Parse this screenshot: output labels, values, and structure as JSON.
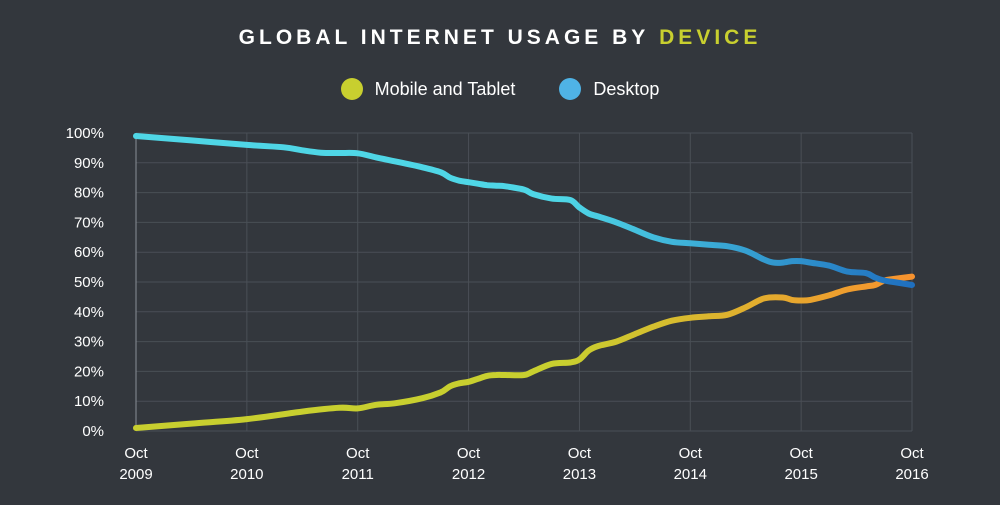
{
  "title_prefix": "GLOBAL INTERNET USAGE BY",
  "title_accent": "DEVICE",
  "legend": [
    {
      "name": "Mobile and Tablet",
      "color": "#c8cf2f"
    },
    {
      "name": "Desktop",
      "color": "#4fb3e6"
    }
  ],
  "chart_data": {
    "type": "line",
    "ylim": [
      0,
      100
    ],
    "xlim": [
      0,
      84
    ],
    "grid": true,
    "legend_placement": "top-center",
    "yticks": [
      {
        "value": 0,
        "label": "0%"
      },
      {
        "value": 10,
        "label": "10%"
      },
      {
        "value": 20,
        "label": "20%"
      },
      {
        "value": 30,
        "label": "30%"
      },
      {
        "value": 40,
        "label": "40%"
      },
      {
        "value": 50,
        "label": "50%"
      },
      {
        "value": 60,
        "label": "60%"
      },
      {
        "value": 70,
        "label": "70%"
      },
      {
        "value": 80,
        "label": "80%"
      },
      {
        "value": 90,
        "label": "90%"
      },
      {
        "value": 100,
        "label": "100%"
      }
    ],
    "xticks": [
      {
        "value": 0,
        "label": [
          "Oct",
          "2009"
        ]
      },
      {
        "value": 12,
        "label": [
          "Oct",
          "2010"
        ]
      },
      {
        "value": 24,
        "label": [
          "Oct",
          "2011"
        ]
      },
      {
        "value": 36,
        "label": [
          "Oct",
          "2012"
        ]
      },
      {
        "value": 48,
        "label": [
          "Oct",
          "2013"
        ]
      },
      {
        "value": 60,
        "label": [
          "Oct",
          "2014"
        ]
      },
      {
        "value": 72,
        "label": [
          "Oct",
          "2015"
        ]
      },
      {
        "value": 84,
        "label": [
          "Oct",
          "2016"
        ]
      }
    ],
    "series": [
      {
        "name": "Mobile and Tablet",
        "color_start": "#c8cf2f",
        "color_end": "#f7922e",
        "x": [
          0,
          6,
          12,
          18,
          22,
          24,
          26,
          28,
          31,
          33,
          34,
          35,
          36,
          37,
          38,
          39,
          40,
          42,
          43,
          45,
          47,
          48,
          49,
          50,
          52,
          54,
          56,
          58,
          60,
          62,
          64,
          66,
          68,
          70,
          71,
          72,
          73,
          75,
          77,
          79,
          80,
          81,
          82,
          84
        ],
        "values": [
          1,
          2.5,
          4,
          6.5,
          7.8,
          7.6,
          8.8,
          9.3,
          11,
          13,
          15,
          16,
          16.5,
          17.5,
          18.5,
          18.8,
          18.8,
          18.8,
          20,
          22.5,
          23,
          24,
          27,
          28.5,
          30,
          32.5,
          35,
          37,
          38,
          38.5,
          39,
          41.5,
          44.5,
          44.8,
          44,
          43.8,
          44,
          45.5,
          47.5,
          48.5,
          49,
          50.5,
          51,
          51.8
        ]
      },
      {
        "name": "Desktop",
        "color_start": "#4fd6e6",
        "color_end": "#1f6fbf",
        "x": [
          0,
          6,
          12,
          16,
          18,
          20,
          22,
          24,
          26,
          28,
          31,
          33,
          34,
          35,
          36,
          37,
          38,
          39,
          40,
          42,
          43,
          45,
          47,
          48,
          49,
          50,
          52,
          54,
          56,
          58,
          60,
          62,
          64,
          66,
          68,
          69,
          70,
          71,
          72,
          73,
          75,
          77,
          79,
          80,
          81,
          82,
          84
        ],
        "values": [
          99,
          97.5,
          96,
          95.2,
          94.2,
          93.4,
          93.3,
          93.2,
          91.8,
          90.5,
          88.5,
          86.8,
          85,
          84,
          83.5,
          83,
          82.5,
          82.3,
          82.1,
          81,
          79.5,
          78,
          77.5,
          75,
          73,
          72,
          70,
          67.5,
          65,
          63.5,
          63,
          62.5,
          62,
          60.5,
          57.5,
          56.5,
          56.5,
          57,
          57,
          56.5,
          55.5,
          53.5,
          53,
          51.5,
          50.5,
          50,
          49
        ]
      }
    ]
  }
}
